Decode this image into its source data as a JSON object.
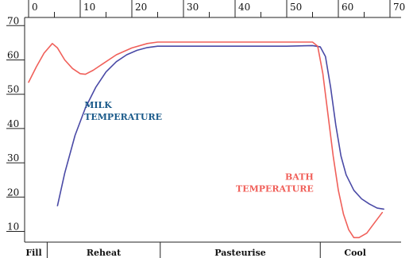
{
  "chart_data": {
    "type": "line",
    "title": "",
    "xlabel": "",
    "ylabel": "",
    "xlim": [
      0,
      70
    ],
    "ylim": [
      0,
      70
    ],
    "x_ticks": [
      "0",
      "10",
      "20",
      "30",
      "40",
      "50",
      "60",
      "70"
    ],
    "y_ticks": [
      "10",
      "20",
      "30",
      "40",
      "50",
      "60",
      "70"
    ],
    "grid": false,
    "series": [
      {
        "name": "MILK TEMPERATURE",
        "color": "#4a4aa6",
        "points": [
          [
            5.6,
            17.5
          ],
          [
            7,
            27
          ],
          [
            9,
            38
          ],
          [
            11,
            46
          ],
          [
            13,
            52
          ],
          [
            15,
            56.5
          ],
          [
            17,
            59.5
          ],
          [
            19,
            61.5
          ],
          [
            21,
            62.8
          ],
          [
            23,
            63.6
          ],
          [
            25,
            64
          ],
          [
            30,
            64
          ],
          [
            40,
            64
          ],
          [
            50,
            64
          ],
          [
            55,
            64.2
          ],
          [
            56.5,
            63.8
          ],
          [
            57.5,
            61
          ],
          [
            58.5,
            52
          ],
          [
            59.5,
            41
          ],
          [
            60.5,
            32
          ],
          [
            61.5,
            26.5
          ],
          [
            63,
            22
          ],
          [
            64.5,
            19.5
          ],
          [
            66,
            18
          ],
          [
            67.5,
            16.8
          ],
          [
            68.8,
            16.5
          ]
        ]
      },
      {
        "name": "BATH TEMPERATURE",
        "color": "#f0605a",
        "points": [
          [
            0,
            53.5
          ],
          [
            1.5,
            58
          ],
          [
            3,
            62
          ],
          [
            4.6,
            64.8
          ],
          [
            5.6,
            63.5
          ],
          [
            7,
            60
          ],
          [
            8.5,
            57.5
          ],
          [
            10,
            56
          ],
          [
            11,
            55.8
          ],
          [
            12.5,
            57
          ],
          [
            14.5,
            59
          ],
          [
            17,
            61.5
          ],
          [
            20,
            63.5
          ],
          [
            23,
            64.8
          ],
          [
            25,
            65.2
          ],
          [
            30,
            65.2
          ],
          [
            40,
            65.2
          ],
          [
            50,
            65.2
          ],
          [
            55,
            65.2
          ],
          [
            56,
            64
          ],
          [
            57,
            56
          ],
          [
            58,
            44
          ],
          [
            59,
            32
          ],
          [
            60,
            22
          ],
          [
            61,
            15
          ],
          [
            62,
            10.5
          ],
          [
            63,
            8.2
          ],
          [
            64,
            8.2
          ],
          [
            65.5,
            9.5
          ],
          [
            67,
            12.5
          ],
          [
            68.5,
            15.5
          ]
        ]
      }
    ],
    "annotations": [
      {
        "text": [
          "MILK",
          "TEMPERATURE"
        ],
        "color": "#1a5a8a",
        "x": 10.8,
        "y": 46
      },
      {
        "text": [
          "BATH",
          "TEMPERATURE"
        ],
        "color": "#f0605a",
        "x": 55.2,
        "y": 25
      }
    ],
    "phases": [
      {
        "label": "Fill",
        "start": -1.6,
        "end": 3.6
      },
      {
        "label": "Reheat",
        "start": 3.6,
        "end": 25.5
      },
      {
        "label": "Pasteurise",
        "start": 25.5,
        "end": 56.5
      },
      {
        "label": "Cool",
        "start": 56.5,
        "end": 70
      }
    ]
  }
}
